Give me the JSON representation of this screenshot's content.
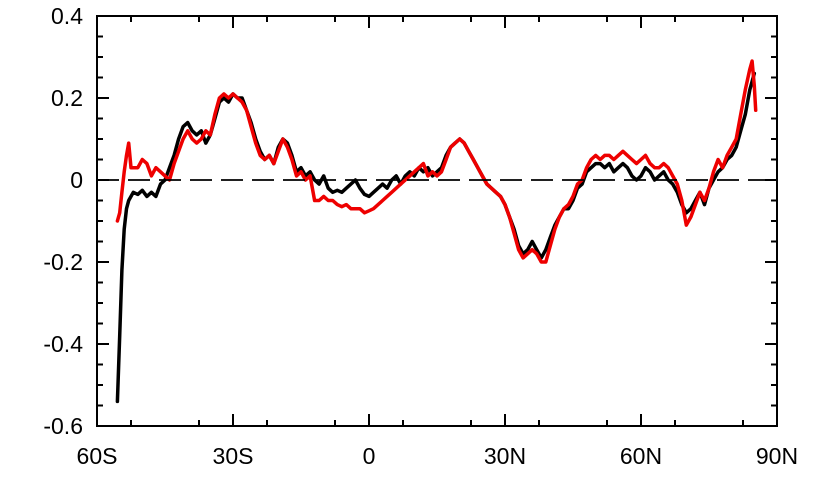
{
  "chart_data": {
    "type": "line",
    "title": "",
    "xlabel": "",
    "ylabel": "",
    "xlim": [
      -60,
      90
    ],
    "ylim": [
      -0.6,
      0.4
    ],
    "x_ticks": [
      {
        "value": -60,
        "label": "60S"
      },
      {
        "value": -30,
        "label": "30S"
      },
      {
        "value": 0,
        "label": "0"
      },
      {
        "value": 30,
        "label": "30N"
      },
      {
        "value": 60,
        "label": "60N"
      },
      {
        "value": 90,
        "label": "90N"
      }
    ],
    "y_ticks": [
      {
        "value": 0.4,
        "label": "0.4"
      },
      {
        "value": 0.2,
        "label": "0.2"
      },
      {
        "value": 0,
        "label": "0"
      },
      {
        "value": -0.2,
        "label": "-0.2"
      },
      {
        "value": -0.4,
        "label": "-0.4"
      },
      {
        "value": -0.6,
        "label": "-0.6"
      }
    ],
    "reference_line": {
      "y": 0,
      "style": "dashed",
      "color": "#000000"
    },
    "series": [
      {
        "color": "#000000",
        "points": [
          [
            -55.5,
            -0.54
          ],
          [
            -55,
            -0.38
          ],
          [
            -54.5,
            -0.22
          ],
          [
            -54,
            -0.12
          ],
          [
            -53.5,
            -0.07
          ],
          [
            -53,
            -0.05
          ],
          [
            -52,
            -0.03
          ],
          [
            -51,
            -0.035
          ],
          [
            -50,
            -0.025
          ],
          [
            -49,
            -0.04
          ],
          [
            -48,
            -0.03
          ],
          [
            -47,
            -0.04
          ],
          [
            -46,
            -0.01
          ],
          [
            -45,
            0.0
          ],
          [
            -44,
            0.03
          ],
          [
            -43,
            0.06
          ],
          [
            -42,
            0.1
          ],
          [
            -41,
            0.13
          ],
          [
            -40,
            0.14
          ],
          [
            -39,
            0.12
          ],
          [
            -38,
            0.11
          ],
          [
            -37,
            0.12
          ],
          [
            -36,
            0.09
          ],
          [
            -35,
            0.11
          ],
          [
            -34,
            0.15
          ],
          [
            -33,
            0.19
          ],
          [
            -32,
            0.2
          ],
          [
            -31,
            0.19
          ],
          [
            -30,
            0.21
          ],
          [
            -29,
            0.2
          ],
          [
            -28,
            0.2
          ],
          [
            -27,
            0.17
          ],
          [
            -26,
            0.14
          ],
          [
            -25,
            0.1
          ],
          [
            -24,
            0.07
          ],
          [
            -23,
            0.05
          ],
          [
            -22,
            0.06
          ],
          [
            -21,
            0.04
          ],
          [
            -20,
            0.08
          ],
          [
            -19,
            0.1
          ],
          [
            -18,
            0.09
          ],
          [
            -17,
            0.06
          ],
          [
            -16,
            0.02
          ],
          [
            -15,
            0.03
          ],
          [
            -14,
            0.01
          ],
          [
            -13,
            0.02
          ],
          [
            -12,
            0.0
          ],
          [
            -11,
            -0.01
          ],
          [
            -10,
            0.01
          ],
          [
            -9,
            -0.02
          ],
          [
            -8,
            -0.03
          ],
          [
            -7,
            -0.025
          ],
          [
            -6,
            -0.03
          ],
          [
            -5,
            -0.02
          ],
          [
            -4,
            -0.01
          ],
          [
            -3,
            0.0
          ],
          [
            -2,
            -0.02
          ],
          [
            -1,
            -0.035
          ],
          [
            0,
            -0.04
          ],
          [
            1,
            -0.03
          ],
          [
            2,
            -0.02
          ],
          [
            3,
            -0.01
          ],
          [
            4,
            -0.02
          ],
          [
            5,
            0.0
          ],
          [
            6,
            0.01
          ],
          [
            7,
            -0.01
          ],
          [
            8,
            0.01
          ],
          [
            9,
            0.02
          ],
          [
            10,
            0.01
          ],
          [
            11,
            0.03
          ],
          [
            12,
            0.02
          ],
          [
            13,
            0.03
          ],
          [
            14,
            0.01
          ],
          [
            15,
            0.02
          ],
          [
            16,
            0.03
          ],
          [
            17,
            0.06
          ],
          [
            18,
            0.08
          ],
          [
            19,
            0.09
          ],
          [
            20,
            0.1
          ],
          [
            21,
            0.09
          ],
          [
            22,
            0.07
          ],
          [
            23,
            0.05
          ],
          [
            24,
            0.03
          ],
          [
            25,
            0.01
          ],
          [
            26,
            -0.01
          ],
          [
            27,
            -0.02
          ],
          [
            28,
            -0.03
          ],
          [
            29,
            -0.04
          ],
          [
            30,
            -0.06
          ],
          [
            31,
            -0.09
          ],
          [
            32,
            -0.12
          ],
          [
            33,
            -0.16
          ],
          [
            34,
            -0.18
          ],
          [
            35,
            -0.17
          ],
          [
            36,
            -0.15
          ],
          [
            37,
            -0.17
          ],
          [
            38,
            -0.19
          ],
          [
            39,
            -0.17
          ],
          [
            40,
            -0.14
          ],
          [
            41,
            -0.11
          ],
          [
            42,
            -0.09
          ],
          [
            43,
            -0.07
          ],
          [
            44,
            -0.07
          ],
          [
            45,
            -0.05
          ],
          [
            46,
            -0.02
          ],
          [
            47,
            -0.01
          ],
          [
            48,
            0.02
          ],
          [
            49,
            0.03
          ],
          [
            50,
            0.04
          ],
          [
            51,
            0.04
          ],
          [
            52,
            0.03
          ],
          [
            53,
            0.04
          ],
          [
            54,
            0.02
          ],
          [
            55,
            0.03
          ],
          [
            56,
            0.04
          ],
          [
            57,
            0.03
          ],
          [
            58,
            0.01
          ],
          [
            59,
            0.0
          ],
          [
            60,
            0.01
          ],
          [
            61,
            0.03
          ],
          [
            62,
            0.02
          ],
          [
            63,
            0.0
          ],
          [
            64,
            0.01
          ],
          [
            65,
            0.02
          ],
          [
            66,
            0.0
          ],
          [
            67,
            -0.01
          ],
          [
            68,
            -0.03
          ],
          [
            69,
            -0.06
          ],
          [
            70,
            -0.08
          ],
          [
            71,
            -0.07
          ],
          [
            72,
            -0.05
          ],
          [
            73,
            -0.03
          ],
          [
            74,
            -0.06
          ],
          [
            75,
            -0.02
          ],
          [
            76,
            0.0
          ],
          [
            77,
            0.02
          ],
          [
            78,
            0.03
          ],
          [
            79,
            0.05
          ],
          [
            80,
            0.06
          ],
          [
            81,
            0.08
          ],
          [
            82,
            0.12
          ],
          [
            83,
            0.16
          ],
          [
            84,
            0.22
          ],
          [
            85,
            0.26
          ]
        ]
      },
      {
        "color": "#ee0000",
        "points": [
          [
            -55.5,
            -0.1
          ],
          [
            -55,
            -0.08
          ],
          [
            -54.5,
            -0.03
          ],
          [
            -54,
            0.02
          ],
          [
            -53.5,
            0.06
          ],
          [
            -53,
            0.09
          ],
          [
            -52.5,
            0.03
          ],
          [
            -51,
            0.03
          ],
          [
            -50,
            0.05
          ],
          [
            -49,
            0.04
          ],
          [
            -48,
            0.01
          ],
          [
            -47,
            0.03
          ],
          [
            -46,
            0.02
          ],
          [
            -45,
            0.01
          ],
          [
            -44,
            0.0
          ],
          [
            -43,
            0.04
          ],
          [
            -42,
            0.07
          ],
          [
            -41,
            0.1
          ],
          [
            -40,
            0.12
          ],
          [
            -39,
            0.1
          ],
          [
            -38,
            0.09
          ],
          [
            -37,
            0.1
          ],
          [
            -36,
            0.12
          ],
          [
            -35,
            0.11
          ],
          [
            -34,
            0.16
          ],
          [
            -33,
            0.2
          ],
          [
            -32,
            0.21
          ],
          [
            -31,
            0.2
          ],
          [
            -30,
            0.21
          ],
          [
            -29,
            0.2
          ],
          [
            -28,
            0.19
          ],
          [
            -27,
            0.17
          ],
          [
            -26,
            0.13
          ],
          [
            -25,
            0.09
          ],
          [
            -24,
            0.06
          ],
          [
            -23,
            0.05
          ],
          [
            -22,
            0.06
          ],
          [
            -21,
            0.04
          ],
          [
            -20,
            0.07
          ],
          [
            -19,
            0.1
          ],
          [
            -18,
            0.08
          ],
          [
            -17,
            0.05
          ],
          [
            -16,
            0.01
          ],
          [
            -15,
            0.02
          ],
          [
            -14,
            0.0
          ],
          [
            -13,
            0.01
          ],
          [
            -12,
            -0.05
          ],
          [
            -11,
            -0.05
          ],
          [
            -10,
            -0.04
          ],
          [
            -9,
            -0.05
          ],
          [
            -8,
            -0.05
          ],
          [
            -7,
            -0.06
          ],
          [
            -6,
            -0.065
          ],
          [
            -5,
            -0.06
          ],
          [
            -4,
            -0.07
          ],
          [
            -3,
            -0.07
          ],
          [
            -2,
            -0.07
          ],
          [
            -1,
            -0.08
          ],
          [
            0,
            -0.075
          ],
          [
            1,
            -0.07
          ],
          [
            2,
            -0.06
          ],
          [
            3,
            -0.05
          ],
          [
            4,
            -0.04
          ],
          [
            5,
            -0.03
          ],
          [
            6,
            -0.02
          ],
          [
            7,
            -0.01
          ],
          [
            8,
            0.0
          ],
          [
            9,
            0.01
          ],
          [
            10,
            0.02
          ],
          [
            11,
            0.03
          ],
          [
            12,
            0.04
          ],
          [
            13,
            0.01
          ],
          [
            14,
            0.02
          ],
          [
            15,
            0.01
          ],
          [
            16,
            0.02
          ],
          [
            17,
            0.05
          ],
          [
            18,
            0.08
          ],
          [
            19,
            0.09
          ],
          [
            20,
            0.1
          ],
          [
            21,
            0.09
          ],
          [
            22,
            0.07
          ],
          [
            23,
            0.05
          ],
          [
            24,
            0.03
          ],
          [
            25,
            0.01
          ],
          [
            26,
            -0.01
          ],
          [
            27,
            -0.02
          ],
          [
            28,
            -0.03
          ],
          [
            29,
            -0.04
          ],
          [
            30,
            -0.06
          ],
          [
            31,
            -0.09
          ],
          [
            32,
            -0.13
          ],
          [
            33,
            -0.17
          ],
          [
            34,
            -0.19
          ],
          [
            35,
            -0.18
          ],
          [
            36,
            -0.17
          ],
          [
            37,
            -0.18
          ],
          [
            38,
            -0.2
          ],
          [
            39,
            -0.2
          ],
          [
            40,
            -0.16
          ],
          [
            41,
            -0.12
          ],
          [
            42,
            -0.09
          ],
          [
            43,
            -0.07
          ],
          [
            44,
            -0.06
          ],
          [
            45,
            -0.04
          ],
          [
            46,
            -0.01
          ],
          [
            47,
            0.0
          ],
          [
            48,
            0.03
          ],
          [
            49,
            0.05
          ],
          [
            50,
            0.06
          ],
          [
            51,
            0.05
          ],
          [
            52,
            0.06
          ],
          [
            53,
            0.06
          ],
          [
            54,
            0.05
          ],
          [
            55,
            0.06
          ],
          [
            56,
            0.07
          ],
          [
            57,
            0.06
          ],
          [
            58,
            0.05
          ],
          [
            59,
            0.04
          ],
          [
            60,
            0.05
          ],
          [
            61,
            0.06
          ],
          [
            62,
            0.04
          ],
          [
            63,
            0.03
          ],
          [
            64,
            0.03
          ],
          [
            65,
            0.04
          ],
          [
            66,
            0.03
          ],
          [
            67,
            0.01
          ],
          [
            68,
            -0.01
          ],
          [
            69,
            -0.05
          ],
          [
            70,
            -0.11
          ],
          [
            71,
            -0.09
          ],
          [
            72,
            -0.06
          ],
          [
            73,
            -0.03
          ],
          [
            74,
            -0.05
          ],
          [
            75,
            -0.02
          ],
          [
            76,
            0.02
          ],
          [
            77,
            0.05
          ],
          [
            78,
            0.03
          ],
          [
            79,
            0.06
          ],
          [
            80,
            0.08
          ],
          [
            81,
            0.1
          ],
          [
            82,
            0.16
          ],
          [
            83,
            0.22
          ],
          [
            84,
            0.27
          ],
          [
            84.5,
            0.29
          ],
          [
            85,
            0.23
          ],
          [
            85.3,
            0.17
          ]
        ]
      }
    ]
  }
}
